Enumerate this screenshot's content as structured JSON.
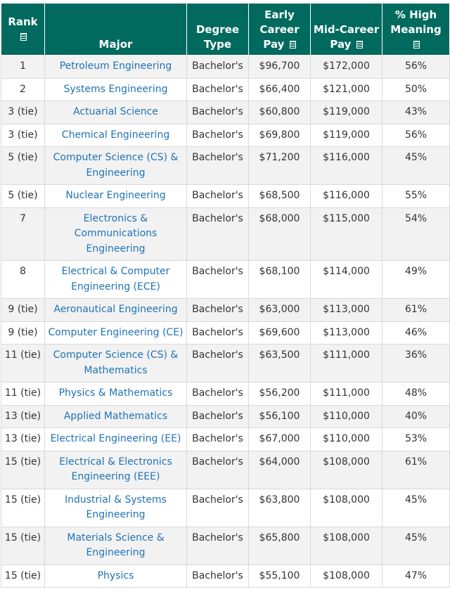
{
  "headers": {
    "rank": "Rank",
    "major": "Major",
    "degree_line1": "Degree",
    "degree_line2": "Type",
    "early_line1": "Early",
    "early_line2": "Career",
    "early_line3": "Pay",
    "mid_line1": "Mid-Career",
    "mid_line2": "Pay",
    "meaning_line1": "% High",
    "meaning_line2": "Meaning"
  },
  "rows": [
    {
      "rank": "1",
      "major": "Petroleum Engineering",
      "degree": "Bachelor's",
      "early": "$96,700",
      "mid": "$172,000",
      "meaning": "56%"
    },
    {
      "rank": "2",
      "major": "Systems Engineering",
      "degree": "Bachelor's",
      "early": "$66,400",
      "mid": "$121,000",
      "meaning": "50%"
    },
    {
      "rank": "3 (tie)",
      "major": "Actuarial Science",
      "degree": "Bachelor's",
      "early": "$60,800",
      "mid": "$119,000",
      "meaning": "43%"
    },
    {
      "rank": "3 (tie)",
      "major": "Chemical Engineering",
      "degree": "Bachelor's",
      "early": "$69,800",
      "mid": "$119,000",
      "meaning": "56%"
    },
    {
      "rank": "5 (tie)",
      "major": "Computer Science (CS) & Engineering",
      "degree": "Bachelor's",
      "early": "$71,200",
      "mid": "$116,000",
      "meaning": "45%"
    },
    {
      "rank": "5 (tie)",
      "major": "Nuclear Engineering",
      "degree": "Bachelor's",
      "early": "$68,500",
      "mid": "$116,000",
      "meaning": "55%"
    },
    {
      "rank": "7",
      "major": "Electronics & Communications Engineering",
      "degree": "Bachelor's",
      "early": "$68,000",
      "mid": "$115,000",
      "meaning": "54%"
    },
    {
      "rank": "8",
      "major": "Electrical & Computer Engineering (ECE)",
      "degree": "Bachelor's",
      "early": "$68,100",
      "mid": "$114,000",
      "meaning": "49%"
    },
    {
      "rank": "9 (tie)",
      "major": "Aeronautical Engineering",
      "degree": "Bachelor's",
      "early": "$63,000",
      "mid": "$113,000",
      "meaning": "61%"
    },
    {
      "rank": "9 (tie)",
      "major": "Computer Engineering (CE)",
      "degree": "Bachelor's",
      "early": "$69,600",
      "mid": "$113,000",
      "meaning": "46%"
    },
    {
      "rank": "11 (tie)",
      "major": "Computer Science (CS) & Mathematics",
      "degree": "Bachelor's",
      "early": "$63,500",
      "mid": "$111,000",
      "meaning": "36%"
    },
    {
      "rank": "11 (tie)",
      "major": "Physics & Mathematics",
      "degree": "Bachelor's",
      "early": "$56,200",
      "mid": "$111,000",
      "meaning": "48%"
    },
    {
      "rank": "13 (tie)",
      "major": "Applied Mathematics",
      "degree": "Bachelor's",
      "early": "$56,100",
      "mid": "$110,000",
      "meaning": "40%"
    },
    {
      "rank": "13 (tie)",
      "major": "Electrical Engineering (EE)",
      "degree": "Bachelor's",
      "early": "$67,000",
      "mid": "$110,000",
      "meaning": "53%"
    },
    {
      "rank": "15 (tie)",
      "major": "Electrical & Electronics Engineering (EEE)",
      "degree": "Bachelor's",
      "early": "$64,000",
      "mid": "$108,000",
      "meaning": "61%"
    },
    {
      "rank": "15 (tie)",
      "major": "Industrial & Systems Engineering",
      "degree": "Bachelor's",
      "early": "$63,800",
      "mid": "$108,000",
      "meaning": "45%"
    },
    {
      "rank": "15 (tie)",
      "major": "Materials Science & Engineering",
      "degree": "Bachelor's",
      "early": "$65,800",
      "mid": "$108,000",
      "meaning": "45%"
    },
    {
      "rank": "15 (tie)",
      "major": "Physics",
      "degree": "Bachelor's",
      "early": "$55,100",
      "mid": "$108,000",
      "meaning": "47%"
    }
  ]
}
